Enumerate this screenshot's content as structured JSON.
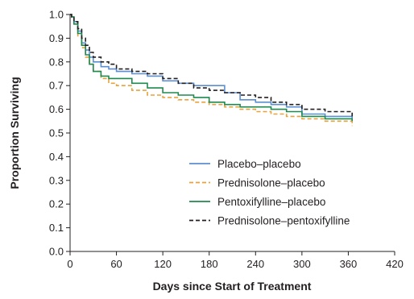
{
  "chart_data": {
    "type": "line",
    "xlabel": "Days since Start of Treatment",
    "ylabel": "Proportion Surviving",
    "xlim": [
      0,
      420
    ],
    "ylim": [
      0.0,
      1.0
    ],
    "x_ticks": [
      "0",
      "60",
      "120",
      "180",
      "240",
      "300",
      "360",
      "420"
    ],
    "y_ticks": [
      "0.0",
      "0.1",
      "0.2",
      "0.3",
      "0.4",
      "0.5",
      "0.6",
      "0.7",
      "0.8",
      "0.9",
      "1.0"
    ],
    "grid": false,
    "legend_position": "lower-right",
    "series": [
      {
        "name": "Placebo–placebo",
        "color": "#5b8fd1",
        "dash": "solid",
        "x": [
          0,
          2,
          5,
          10,
          15,
          20,
          25,
          30,
          40,
          50,
          60,
          80,
          100,
          120,
          140,
          160,
          180,
          200,
          220,
          240,
          260,
          280,
          300,
          330,
          365
        ],
        "y": [
          1.0,
          0.99,
          0.97,
          0.93,
          0.88,
          0.85,
          0.82,
          0.8,
          0.78,
          0.77,
          0.76,
          0.75,
          0.74,
          0.72,
          0.71,
          0.7,
          0.7,
          0.67,
          0.64,
          0.63,
          0.62,
          0.61,
          0.58,
          0.57,
          0.56
        ]
      },
      {
        "name": "Prednisolone–placebo",
        "color": "#e9a23b",
        "dash": "dashed",
        "x": [
          0,
          2,
          5,
          10,
          15,
          20,
          25,
          30,
          40,
          50,
          60,
          80,
          100,
          120,
          140,
          160,
          180,
          200,
          220,
          240,
          260,
          280,
          300,
          330,
          365
        ],
        "y": [
          1.0,
          0.99,
          0.96,
          0.91,
          0.86,
          0.82,
          0.79,
          0.76,
          0.73,
          0.71,
          0.7,
          0.68,
          0.66,
          0.65,
          0.64,
          0.63,
          0.62,
          0.61,
          0.6,
          0.59,
          0.58,
          0.57,
          0.56,
          0.55,
          0.53
        ]
      },
      {
        "name": "Pentoxifylline–placebo",
        "color": "#1f8a4f",
        "dash": "solid",
        "x": [
          0,
          2,
          5,
          10,
          15,
          20,
          25,
          30,
          40,
          50,
          60,
          80,
          100,
          120,
          140,
          160,
          180,
          200,
          220,
          240,
          260,
          280,
          300,
          330,
          365
        ],
        "y": [
          1.0,
          0.99,
          0.96,
          0.92,
          0.87,
          0.83,
          0.79,
          0.76,
          0.74,
          0.73,
          0.73,
          0.71,
          0.69,
          0.67,
          0.66,
          0.65,
          0.63,
          0.62,
          0.61,
          0.61,
          0.6,
          0.59,
          0.57,
          0.56,
          0.55
        ]
      },
      {
        "name": "Prednisolone–pentoxifylline",
        "color": "#231f20",
        "dash": "dashed",
        "x": [
          0,
          2,
          5,
          10,
          15,
          20,
          25,
          30,
          40,
          50,
          60,
          80,
          100,
          120,
          140,
          160,
          180,
          200,
          220,
          240,
          260,
          280,
          300,
          330,
          365
        ],
        "y": [
          1.0,
          0.99,
          0.97,
          0.94,
          0.9,
          0.87,
          0.84,
          0.82,
          0.8,
          0.79,
          0.77,
          0.76,
          0.75,
          0.73,
          0.71,
          0.69,
          0.68,
          0.67,
          0.66,
          0.65,
          0.63,
          0.62,
          0.6,
          0.59,
          0.57
        ]
      }
    ]
  }
}
